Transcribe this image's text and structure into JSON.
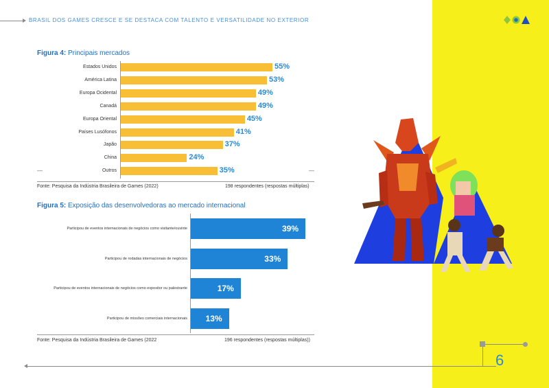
{
  "header": {
    "title": "BRASIL DOS GAMES CRESCE E SE DESTACA COM TALENTO E VERSATILIDADE NO EXTERIOR"
  },
  "figure4": {
    "title_prefix": "Figura 4:",
    "title": "Principais mercados",
    "dash_left": "—",
    "dash_right": "—",
    "source": "Fonte: Pesquisa da Indústria Brasileira de Games (2022)",
    "respondents": "198 respondentes (respostas múltiplas)"
  },
  "figure5": {
    "title_prefix": "Figura 5:",
    "title": "Exposição das desenvolvedoras ao mercado internacional",
    "source": "Fonte: Pesquisa da Indústria Brasileira de Games (2022",
    "respondents": "196 respondentes (respostas múltiplas))"
  },
  "chart_data": [
    {
      "type": "bar",
      "orientation": "horizontal",
      "title": "Principais mercados",
      "categories": [
        "Estados Unidos",
        "América Latina",
        "Europa Ocidental",
        "Canadá",
        "Europa Oriental",
        "Países Lusófonos",
        "Japão",
        "China",
        "Outros"
      ],
      "values": [
        55,
        53,
        49,
        49,
        45,
        41,
        37,
        24,
        35
      ],
      "value_labels": [
        "55%",
        "53%",
        "49%",
        "49%",
        "45%",
        "41%",
        "37%",
        "24%",
        "35%"
      ],
      "unit": "%",
      "color": "#f8be35",
      "label_color": "#2a8ad4"
    },
    {
      "type": "bar",
      "orientation": "horizontal",
      "title": "Exposição das desenvolvedoras ao mercado internacional",
      "categories": [
        "Participou de eventos internacionais de negócios como visitante/ouvinte",
        "Participou de rodadas internacionais de negócios",
        "Participou de eventos internacionais de negócios como expositor ou palestrante",
        "Participou de missões comerciais internacionais"
      ],
      "values": [
        39,
        33,
        17,
        13
      ],
      "value_labels": [
        "39%",
        "33%",
        "17%",
        "13%"
      ],
      "unit": "%",
      "color": "#1f84d6",
      "label_color": "#ffffff"
    }
  ],
  "footer": {
    "page_number": "6"
  },
  "colors": {
    "accent_blue": "#2a8ad4",
    "panel_yellow": "#f7ef1a",
    "bar_yellow": "#f8be35",
    "bar_blue": "#1f84d6"
  }
}
